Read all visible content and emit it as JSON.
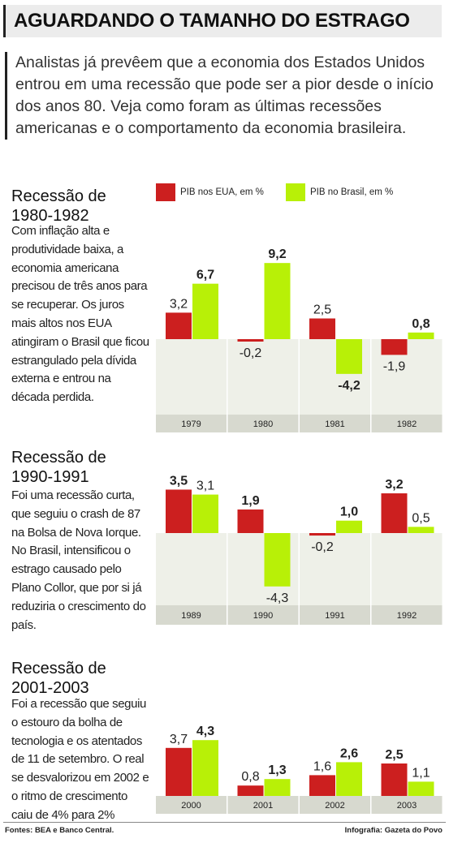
{
  "header": {
    "title": "AGUARDANDO O TAMANHO DO ESTRAGO"
  },
  "intro": "Analistas já prevêem que a economia dos Estados Unidos entrou em uma recessão que pode ser a pior desde o início dos anos 80. Veja como foram as últimas recessões americanas e o comportamento da economia brasileira.",
  "colors": {
    "usa": "#cc1f1f",
    "brazil": "#b8f007",
    "panel": "#eef0e8",
    "axis_band": "#d7d9cf"
  },
  "chart_data": [
    {
      "type": "bar",
      "title": "Recessão de 1980-1982",
      "description": "Com inflação alta e produtividade baixa, a economia americana precisou de três anos para se recuperar. Os juros mais altos nos EUA atingiram o Brasil que ficou estrangulado pela dívida externa e entrou na década perdida.",
      "categories": [
        "1979",
        "1980",
        "1981",
        "1982"
      ],
      "series": [
        {
          "name": "PIB nos EUA, em %",
          "values": [
            3.2,
            -0.2,
            2.5,
            -1.9
          ],
          "labels": [
            "3,2",
            "-0,2",
            "2,5",
            "-1,9"
          ]
        },
        {
          "name": "PIB no Brasil, em %",
          "values": [
            6.7,
            9.2,
            -4.2,
            0.8
          ],
          "labels": [
            "6,7",
            "9,2",
            "-4,2",
            "0,8"
          ]
        }
      ]
    },
    {
      "type": "bar",
      "title": "Recessão de 1990-1991",
      "description": "Foi uma recessão curta, que seguiu o crash de 87 na Bolsa de Nova Iorque. No Brasil, intensificou o estrago causado pelo Plano Collor, que por si já reduziria o crescimento do país.",
      "categories": [
        "1989",
        "1990",
        "1991",
        "1992"
      ],
      "series": [
        {
          "name": "PIB nos EUA, em %",
          "values": [
            3.5,
            1.9,
            -0.2,
            3.2
          ],
          "labels": [
            "3,5",
            "1,9",
            "-0,2",
            "3,2"
          ]
        },
        {
          "name": "PIB no Brasil, em %",
          "values": [
            3.1,
            -4.3,
            1.0,
            0.5
          ],
          "labels": [
            "3,1",
            "-4,3",
            "1,0",
            "0,5"
          ]
        }
      ]
    },
    {
      "type": "bar",
      "title": "Recessão de 2001-2003",
      "description": "Foi a recessão que seguiu o estouro da bolha de tecnologia e os atentados de 11 de setembro. O real se desvalorizou em 2002 e o ritmo de crescimento caiu de 4% para 2%",
      "categories": [
        "2000",
        "2001",
        "2002",
        "2003"
      ],
      "series": [
        {
          "name": "PIB nos EUA, em %",
          "values": [
            3.7,
            0.8,
            1.6,
            2.5
          ],
          "labels": [
            "3,7",
            "0,8",
            "1,6",
            "2,5"
          ]
        },
        {
          "name": "PIB no Brasil, em %",
          "values": [
            4.3,
            1.3,
            2.6,
            1.1
          ],
          "labels": [
            "4,3",
            "1,3",
            "2,6",
            "1,1"
          ]
        }
      ]
    }
  ],
  "footer": {
    "sources": "Fontes: BEA e Banco Central.",
    "credit": "Infografia: Gazeta do Povo"
  }
}
